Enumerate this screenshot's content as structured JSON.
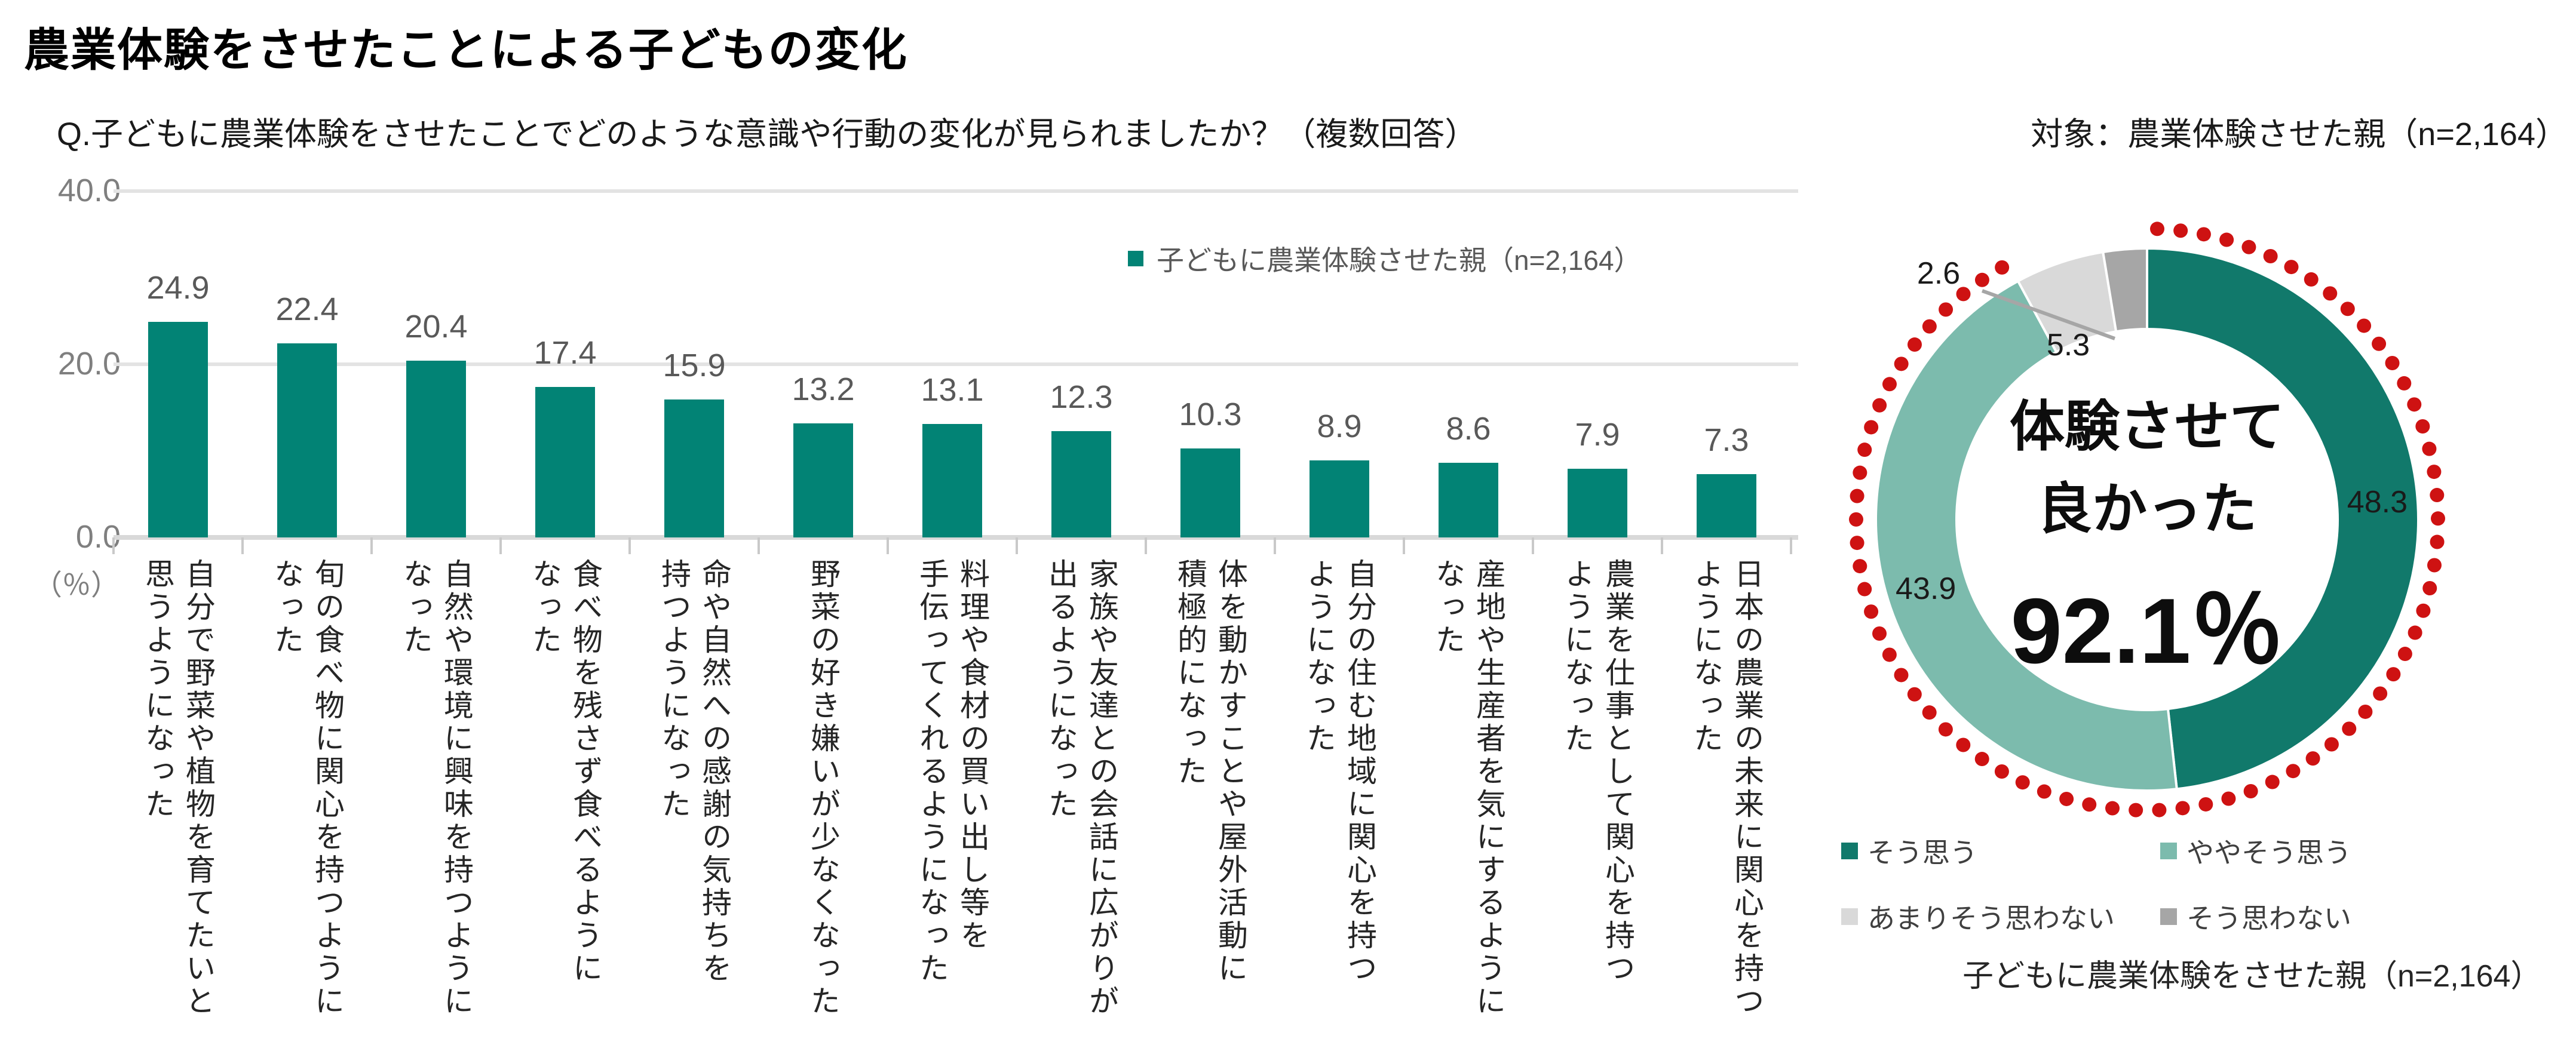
{
  "page": {
    "title": "農業体験をさせたことによる子どもの変化",
    "question": "Q.子どもに農業体験をさせたことでどのような意識や行動の変化が見られましたか？（複数回答）",
    "target_note": "対象：農業体験させた親（n=2,164）"
  },
  "colors": {
    "bar": "#028375",
    "donut_agree": "#11796B",
    "donut_somewhat": "#7CBBAD",
    "donut_not_really": "#D9D9D9",
    "donut_disagree": "#A6A6A6",
    "red_dots": "#CE1212",
    "grid": "#E3E3E3",
    "leader": "#A6A6A6"
  },
  "bar_chart": {
    "y_ticks": [
      "40.0",
      "20.0",
      "0.0"
    ],
    "unit_label": "（％）",
    "legend_label": "子どもに農業体験させた親（n=2,164）",
    "label_lines": [
      [
        "自分で野菜や植物を育てたいと",
        "思うようになった"
      ],
      [
        "旬の食べ物に関心を持つように",
        "なった"
      ],
      [
        "自然や環境に興味を持つように",
        "なった"
      ],
      [
        "食べ物を残さず食べるように",
        "なった"
      ],
      [
        "命や自然への感謝の気持ちを",
        "持つようになった"
      ],
      [
        "野菜の好き嫌いが少なくなった"
      ],
      [
        "料理や食材の買い出し等を",
        "手伝ってくれるようになった"
      ],
      [
        "家族や友達との会話に広がりが",
        "出るようになった"
      ],
      [
        "体を動かすことや屋外活動に",
        "積極的になった"
      ],
      [
        "自分の住む地域に関心を持つ",
        "ようになった"
      ],
      [
        "産地や生産者を気にするように",
        "なった"
      ],
      [
        "農業を仕事として関心を持つ",
        "ようになった"
      ],
      [
        "日本の農業の未来に関心を持つ",
        "ようになった"
      ]
    ]
  },
  "donut": {
    "center_line1": "体験させて",
    "center_line2": "良かった",
    "center_value": "92.1％",
    "note": "子どもに農業体験をさせた親（n=2,164）",
    "legend": [
      {
        "label": "そう思う",
        "color_key": "donut_agree"
      },
      {
        "label": "ややそう思う",
        "color_key": "donut_somewhat"
      },
      {
        "label": "あまりそう思わない",
        "color_key": "donut_not_really"
      },
      {
        "label": "そう思わない",
        "color_key": "donut_disagree"
      }
    ]
  },
  "chart_data": [
    {
      "type": "bar",
      "title": "Q.子どもに農業体験をさせたことでどのような意識や行動の変化が見られましたか？（複数回答）",
      "subject": "対象：農業体験させた親（n=2,164）",
      "categories": [
        "自分で野菜や植物を育てたいと思うようになった",
        "旬の食べ物に関心を持つようになった",
        "自然や環境に興味を持つようになった",
        "食べ物を残さず食べるようになった",
        "命や自然への感謝の気持ちを持つようになった",
        "野菜の好き嫌いが少なくなった",
        "料理や食材の買い出し等を手伝ってくれるようになった",
        "家族や友達との会話に広がりが出るようになった",
        "体を動かすことや屋外活動に積極的になった",
        "自分の住む地域に関心を持つようになった",
        "産地や生産者を気にするようになった",
        "農業を仕事として関心を持つようになった",
        "日本の農業の未来に関心を持つようになった"
      ],
      "values": [
        24.9,
        22.4,
        20.4,
        17.4,
        15.9,
        13.2,
        13.1,
        12.3,
        10.3,
        8.9,
        8.6,
        7.9,
        7.3
      ],
      "xlabel": "",
      "ylabel": "（％）",
      "ylim": [
        0,
        40
      ],
      "yticks": [
        0,
        20,
        40
      ],
      "grid": true,
      "value_labels": true,
      "legend": [
        "子どもに農業体験させた親（n=2,164）"
      ],
      "legend_position": "top-right",
      "bar_color": "#028375"
    },
    {
      "type": "pie",
      "subtype": "donut",
      "labels": [
        "そう思う",
        "ややそう思う",
        "あまりそう思わない",
        "そう思わない"
      ],
      "values": [
        48.3,
        43.9,
        5.3,
        2.6
      ],
      "colors": [
        "#11796B",
        "#7CBBAD",
        "#D9D9D9",
        "#A6A6A6"
      ],
      "center_text": [
        "体験させて",
        "良かった",
        "92.1％"
      ],
      "red_dotted_arc_percent": 92.2,
      "note": "子どもに農業体験をさせた親（n=2,164）",
      "legend_position": "bottom"
    }
  ]
}
